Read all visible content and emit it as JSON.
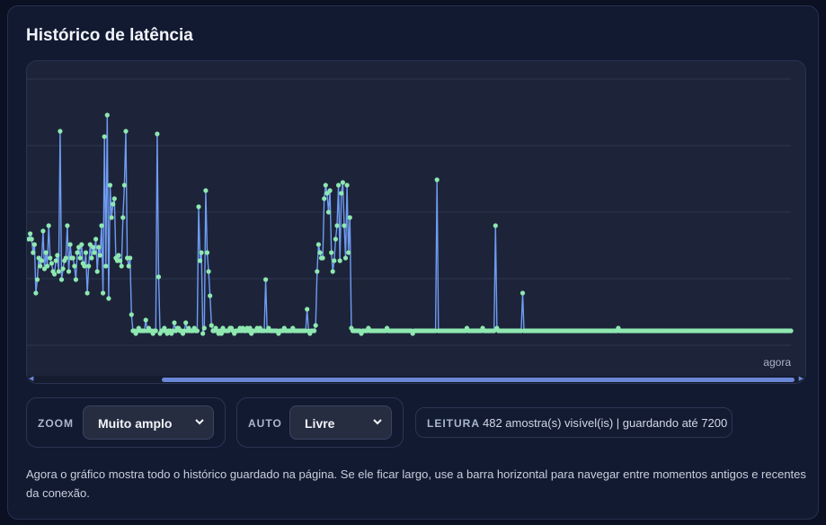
{
  "card": {
    "title": "Histórico de latência"
  },
  "chart": {
    "now_label": "agora",
    "line_color": "#6f9cf2",
    "point_color": "#8ee8b0",
    "grid_color": "#2d3650"
  },
  "chart_data": {
    "type": "line",
    "title": "",
    "xlabel": "",
    "ylabel": "",
    "grid": true,
    "samples_visible": 482,
    "ylim": [
      0,
      100
    ],
    "series": [
      {
        "values": [
          40,
          42,
          40,
          35,
          38,
          20,
          25,
          33,
          30,
          32,
          43,
          29,
          35,
          30,
          45,
          33,
          31,
          28,
          27,
          32,
          34,
          28,
          80,
          25,
          29,
          32,
          33,
          45,
          28,
          38,
          33,
          33,
          30,
          25,
          35,
          37,
          33,
          38,
          31,
          30,
          35,
          20,
          30,
          38,
          33,
          37,
          35,
          40,
          28,
          37,
          34,
          45,
          20,
          78,
          30,
          86,
          18,
          60,
          48,
          53,
          55,
          33,
          32,
          34,
          32,
          30,
          48,
          60,
          80,
          33,
          30,
          33,
          12,
          6,
          6,
          5,
          6,
          7,
          6,
          6,
          6,
          6,
          10,
          6,
          7,
          6,
          6,
          5,
          6,
          6,
          79,
          26,
          5,
          6,
          6,
          7,
          6,
          5,
          6,
          6,
          5,
          6,
          9,
          6,
          7,
          7,
          6,
          6,
          5,
          6,
          9,
          6,
          7,
          6,
          6,
          6,
          7,
          6,
          6,
          52,
          32,
          35,
          5,
          7,
          58,
          35,
          28,
          19,
          8,
          6,
          6,
          7,
          6,
          5,
          6,
          5,
          7,
          6,
          6,
          6,
          6,
          7,
          7,
          6,
          5,
          6,
          6,
          6,
          7,
          6,
          7,
          6,
          6,
          7,
          6,
          7,
          5,
          6,
          6,
          6,
          7,
          6,
          7,
          6,
          6,
          6,
          25,
          6,
          7,
          6,
          6,
          6,
          6,
          6,
          6,
          5,
          6,
          6,
          6,
          7,
          6,
          6,
          6,
          6,
          6,
          7,
          6,
          6,
          6,
          6,
          6,
          6,
          6,
          6,
          6,
          14,
          6,
          5,
          6,
          6,
          6,
          8,
          28,
          38,
          35,
          33,
          33,
          55,
          60,
          57,
          50,
          58,
          35,
          28,
          32,
          40,
          45,
          60,
          32,
          57,
          61,
          45,
          33,
          60,
          35,
          48,
          7,
          6,
          6,
          6,
          6,
          6,
          6,
          5,
          6,
          6,
          6,
          6,
          7,
          6,
          6,
          6,
          6,
          6,
          6,
          6,
          6,
          6,
          6,
          6,
          6,
          7,
          6,
          6,
          6,
          6,
          6,
          6,
          6,
          6,
          6,
          6,
          6,
          6,
          6,
          6,
          6,
          6,
          6,
          5,
          6,
          6,
          6,
          6,
          6,
          6,
          6,
          6,
          6,
          6,
          6,
          6,
          6,
          6,
          6,
          6,
          62,
          6,
          6,
          6,
          6,
          6,
          6,
          6,
          6,
          6,
          6,
          6,
          6,
          6,
          6,
          6,
          6,
          6,
          6,
          6,
          6,
          7,
          6,
          6,
          6,
          6,
          6,
          6,
          6,
          6,
          6,
          6,
          7,
          6,
          6,
          6,
          6,
          6,
          6,
          6,
          6,
          45,
          7,
          6,
          6,
          6,
          6,
          6,
          6,
          6,
          6,
          6,
          6,
          6,
          6,
          6,
          6,
          6,
          6,
          6,
          20,
          6,
          6,
          6,
          6,
          6,
          6,
          6,
          6,
          6,
          6,
          6,
          6,
          6,
          6,
          6,
          6,
          6,
          6,
          6,
          6,
          6,
          6,
          6,
          6,
          6,
          6,
          6,
          6,
          6,
          6,
          6,
          6,
          6,
          6,
          6,
          6,
          6,
          6,
          6,
          6,
          6,
          6,
          6,
          6,
          6,
          6,
          6,
          6,
          6,
          6,
          6,
          6,
          6,
          6,
          6,
          6,
          6,
          6,
          6,
          6,
          6,
          6,
          6,
          6,
          6,
          6,
          7,
          6,
          6,
          6,
          6,
          6,
          6,
          6,
          6,
          6,
          6,
          6,
          6,
          6,
          6,
          6,
          6,
          6,
          6,
          6,
          6,
          6,
          6,
          6,
          6,
          6,
          6,
          6,
          6,
          6,
          6,
          6,
          6,
          6,
          6,
          6,
          6,
          6,
          6,
          6,
          6,
          6,
          6,
          6,
          6,
          6,
          6,
          6,
          6,
          6,
          6,
          6,
          6,
          6,
          6,
          6,
          6,
          6,
          6,
          6,
          6,
          6,
          6,
          6,
          6,
          6,
          6,
          6,
          6,
          6,
          6,
          6,
          6,
          6,
          6,
          6,
          6,
          6,
          6,
          6,
          6,
          6,
          6,
          6,
          6,
          6,
          6,
          6,
          6,
          6,
          6,
          6,
          6,
          6,
          6,
          6,
          6,
          6,
          6,
          6,
          6,
          6,
          6,
          6,
          6,
          6,
          6,
          6,
          6,
          6,
          6,
          6,
          6,
          6,
          6,
          6,
          6,
          6,
          6,
          6,
          6,
          6
        ]
      }
    ]
  },
  "controls": {
    "zoom": {
      "label": "ZOOM",
      "value": "Muito amplo"
    },
    "auto": {
      "label": "AUTO",
      "value": "Livre"
    }
  },
  "status": {
    "label": "LEITURA",
    "text": "482 amostra(s) visível(is) | guardando até 7200"
  },
  "description": "Agora o gráfico mostra todo o histórico guardado na página. Se ele ficar largo, use a barra horizontal para navegar entre momentos antigos e recentes da conexão."
}
